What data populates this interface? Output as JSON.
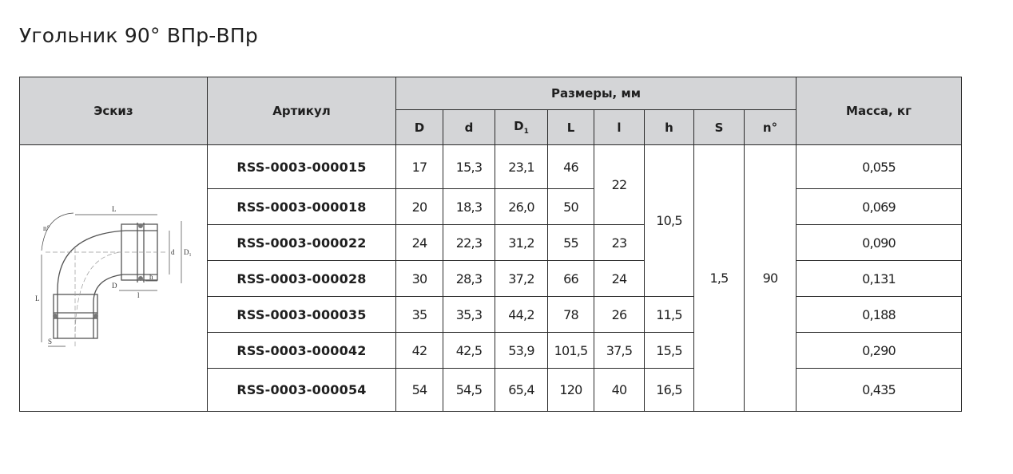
{
  "title": "Угольник 90° ВПр-ВПр",
  "headers": {
    "sketch": "Эскиз",
    "article": "Артикул",
    "dimensions": "Размеры, мм",
    "mass": "Масса, кг",
    "D": "D",
    "d": "d",
    "D1": "D",
    "D1_sub": "1",
    "L": "L",
    "l": "l",
    "h": "h",
    "S": "S",
    "n": "n°"
  },
  "sketch_labels": {
    "L": "L",
    "d": "d",
    "D1": "D₁",
    "D": "D",
    "h": "h",
    "l": "l",
    "S": "S",
    "n": "n°"
  },
  "shared": {
    "S": "1,5",
    "n": "90",
    "h_1_4": "10,5",
    "l_1_2": "22"
  },
  "rows": [
    {
      "article": "RSS-0003-000015",
      "D": "17",
      "d": "15,3",
      "D1": "23,1",
      "L": "46",
      "mass": "0,055"
    },
    {
      "article": "RSS-0003-000018",
      "D": "20",
      "d": "18,3",
      "D1": "26,0",
      "L": "50",
      "mass": "0,069"
    },
    {
      "article": "RSS-0003-000022",
      "D": "24",
      "d": "22,3",
      "D1": "31,2",
      "L": "55",
      "l": "23",
      "mass": "0,090"
    },
    {
      "article": "RSS-0003-000028",
      "D": "30",
      "d": "28,3",
      "D1": "37,2",
      "L": "66",
      "l": "24",
      "mass": "0,131"
    },
    {
      "article": "RSS-0003-000035",
      "D": "35",
      "d": "35,3",
      "D1": "44,2",
      "L": "78",
      "l": "26",
      "h": "11,5",
      "mass": "0,188"
    },
    {
      "article": "RSS-0003-000042",
      "D": "42",
      "d": "42,5",
      "D1": "53,9",
      "L": "101,5",
      "l": "37,5",
      "h": "15,5",
      "mass": "0,290"
    },
    {
      "article": "RSS-0003-000054",
      "D": "54",
      "d": "54,5",
      "D1": "65,4",
      "L": "120",
      "l": "40",
      "h": "16,5",
      "mass": "0,435"
    }
  ]
}
